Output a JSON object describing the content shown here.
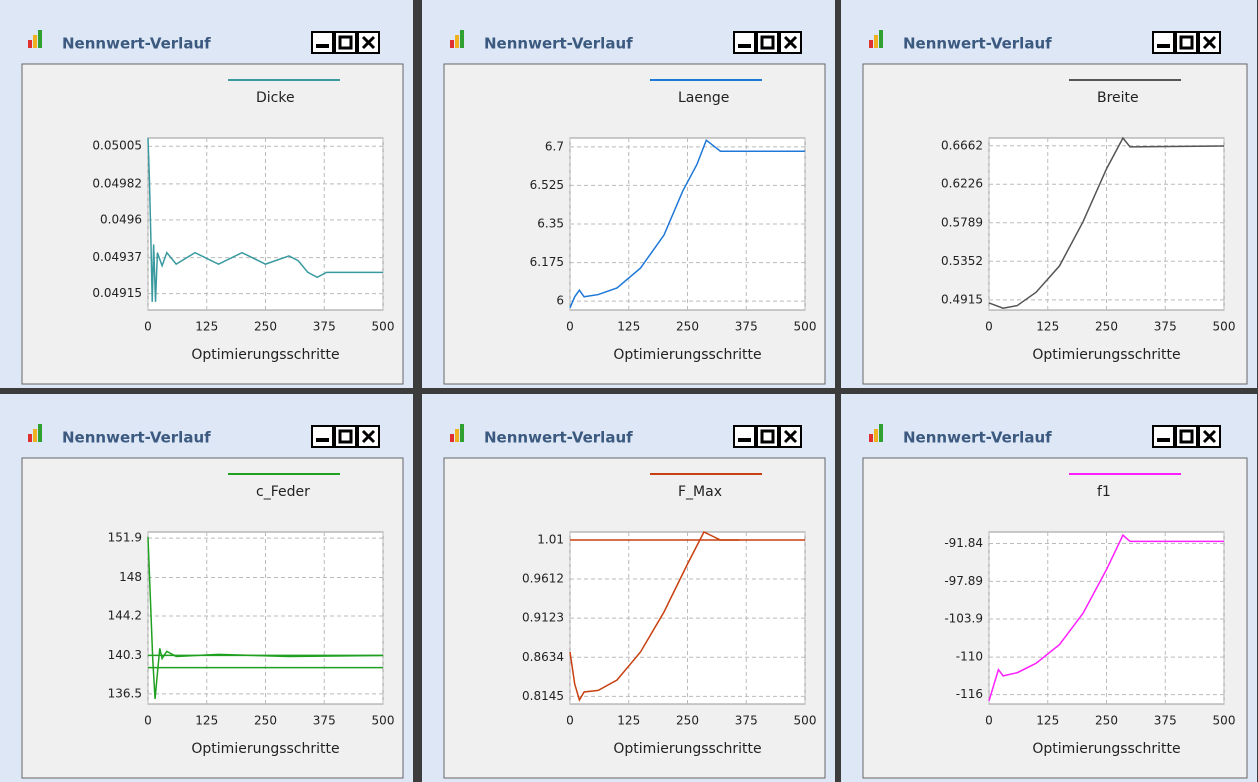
{
  "windows": [
    {
      "title": "Nennwert-Verlauf"
    },
    {
      "title": "Nennwert-Verlauf"
    },
    {
      "title": "Nennwert-Verlauf"
    },
    {
      "title": "Nennwert-Verlauf"
    },
    {
      "title": "Nennwert-Verlauf"
    },
    {
      "title": "Nennwert-Verlauf"
    }
  ],
  "chart_data": [
    {
      "type": "line",
      "xlabel": "Optimierungsschritte",
      "xlim": [
        0,
        500
      ],
      "xticks": [
        0,
        125,
        250,
        375,
        500
      ],
      "ylim": [
        0.04905,
        0.0501
      ],
      "yticks": [
        0.04915,
        0.04937,
        0.0496,
        0.04982,
        0.05005
      ],
      "grid": true,
      "x": [
        0,
        3,
        6,
        9,
        12,
        16,
        20,
        30,
        40,
        60,
        100,
        150,
        200,
        250,
        300,
        320,
        340,
        360,
        380,
        420,
        500
      ],
      "series": [
        {
          "name": "Dicke",
          "color": "#3a9aa0",
          "values": [
            0.0501,
            0.04985,
            0.0495,
            0.0491,
            0.04945,
            0.0491,
            0.0494,
            0.04932,
            0.0494,
            0.04933,
            0.0494,
            0.04933,
            0.0494,
            0.04933,
            0.04938,
            0.04935,
            0.04928,
            0.04925,
            0.04928,
            0.04928,
            0.04928
          ]
        }
      ]
    },
    {
      "type": "line",
      "xlabel": "Optimierungsschritte",
      "xlim": [
        0,
        500
      ],
      "xticks": [
        0,
        125,
        250,
        375,
        500
      ],
      "ylim": [
        5.96,
        6.74
      ],
      "yticks": [
        6,
        6.175,
        6.35,
        6.525,
        6.7
      ],
      "grid": true,
      "x": [
        0,
        10,
        20,
        30,
        60,
        100,
        150,
        200,
        240,
        270,
        290,
        320,
        500
      ],
      "series": [
        {
          "name": "Laenge",
          "color": "#1e78d8",
          "values": [
            5.97,
            6.02,
            6.05,
            6.02,
            6.03,
            6.06,
            6.15,
            6.3,
            6.5,
            6.62,
            6.73,
            6.68,
            6.68
          ]
        }
      ]
    },
    {
      "type": "line",
      "xlabel": "Optimierungsschritte",
      "xlim": [
        0,
        500
      ],
      "xticks": [
        0,
        125,
        250,
        375,
        500
      ],
      "ylim": [
        0.48,
        0.675
      ],
      "yticks": [
        0.4915,
        0.5352,
        0.5789,
        0.6226,
        0.6662
      ],
      "grid": true,
      "x": [
        0,
        30,
        60,
        100,
        150,
        200,
        250,
        285,
        300,
        500
      ],
      "series": [
        {
          "name": "Breite",
          "color": "#555555",
          "values": [
            0.488,
            0.482,
            0.485,
            0.5,
            0.53,
            0.58,
            0.64,
            0.675,
            0.665,
            0.666
          ]
        }
      ]
    },
    {
      "type": "line",
      "xlabel": "Optimierungsschritte",
      "xlim": [
        0,
        500
      ],
      "xticks": [
        0,
        125,
        250,
        375,
        500
      ],
      "ylim": [
        135.5,
        152.5
      ],
      "yticks": [
        136.5,
        140.3,
        144.2,
        148,
        151.9
      ],
      "grid": true,
      "x": [
        0,
        5,
        10,
        15,
        25,
        30,
        40,
        60,
        150,
        300,
        500
      ],
      "reference_lines": [
        140.3,
        139.1
      ],
      "series": [
        {
          "name": "c_Feder",
          "color": "#20a020",
          "values": [
            152,
            146,
            140,
            136,
            141,
            140,
            140.7,
            140.2,
            140.4,
            140.2,
            140.3
          ]
        }
      ]
    },
    {
      "type": "line",
      "xlabel": "Optimierungsschritte",
      "xlim": [
        0,
        500
      ],
      "xticks": [
        0,
        125,
        250,
        375,
        500
      ],
      "ylim": [
        0.805,
        1.02
      ],
      "yticks": [
        0.8145,
        0.8634,
        0.9123,
        0.9612,
        1.01
      ],
      "grid": true,
      "x": [
        0,
        10,
        20,
        30,
        60,
        100,
        150,
        200,
        250,
        285,
        320,
        360
      ],
      "reference_lines": [
        1.01
      ],
      "series": [
        {
          "name": "F_Max",
          "color": "#c84010",
          "values": [
            0.87,
            0.83,
            0.81,
            0.82,
            0.822,
            0.835,
            0.87,
            0.92,
            0.98,
            1.02,
            1.01,
            1.01
          ]
        }
      ]
    },
    {
      "type": "line",
      "xlabel": "Optimierungsschritte",
      "xlim": [
        0,
        500
      ],
      "xticks": [
        0,
        125,
        250,
        375,
        500
      ],
      "ylim": [
        -117.5,
        -90
      ],
      "yticks": [
        -116,
        -110,
        -103.9,
        -97.89,
        -91.84
      ],
      "grid": true,
      "x": [
        0,
        20,
        30,
        60,
        100,
        150,
        200,
        250,
        285,
        300,
        500
      ],
      "series": [
        {
          "name": "f1",
          "color": "#ff20ff",
          "values": [
            -117,
            -112,
            -113,
            -112.5,
            -111,
            -108,
            -103,
            -96,
            -90.5,
            -91.5,
            -91.5
          ]
        }
      ]
    }
  ]
}
